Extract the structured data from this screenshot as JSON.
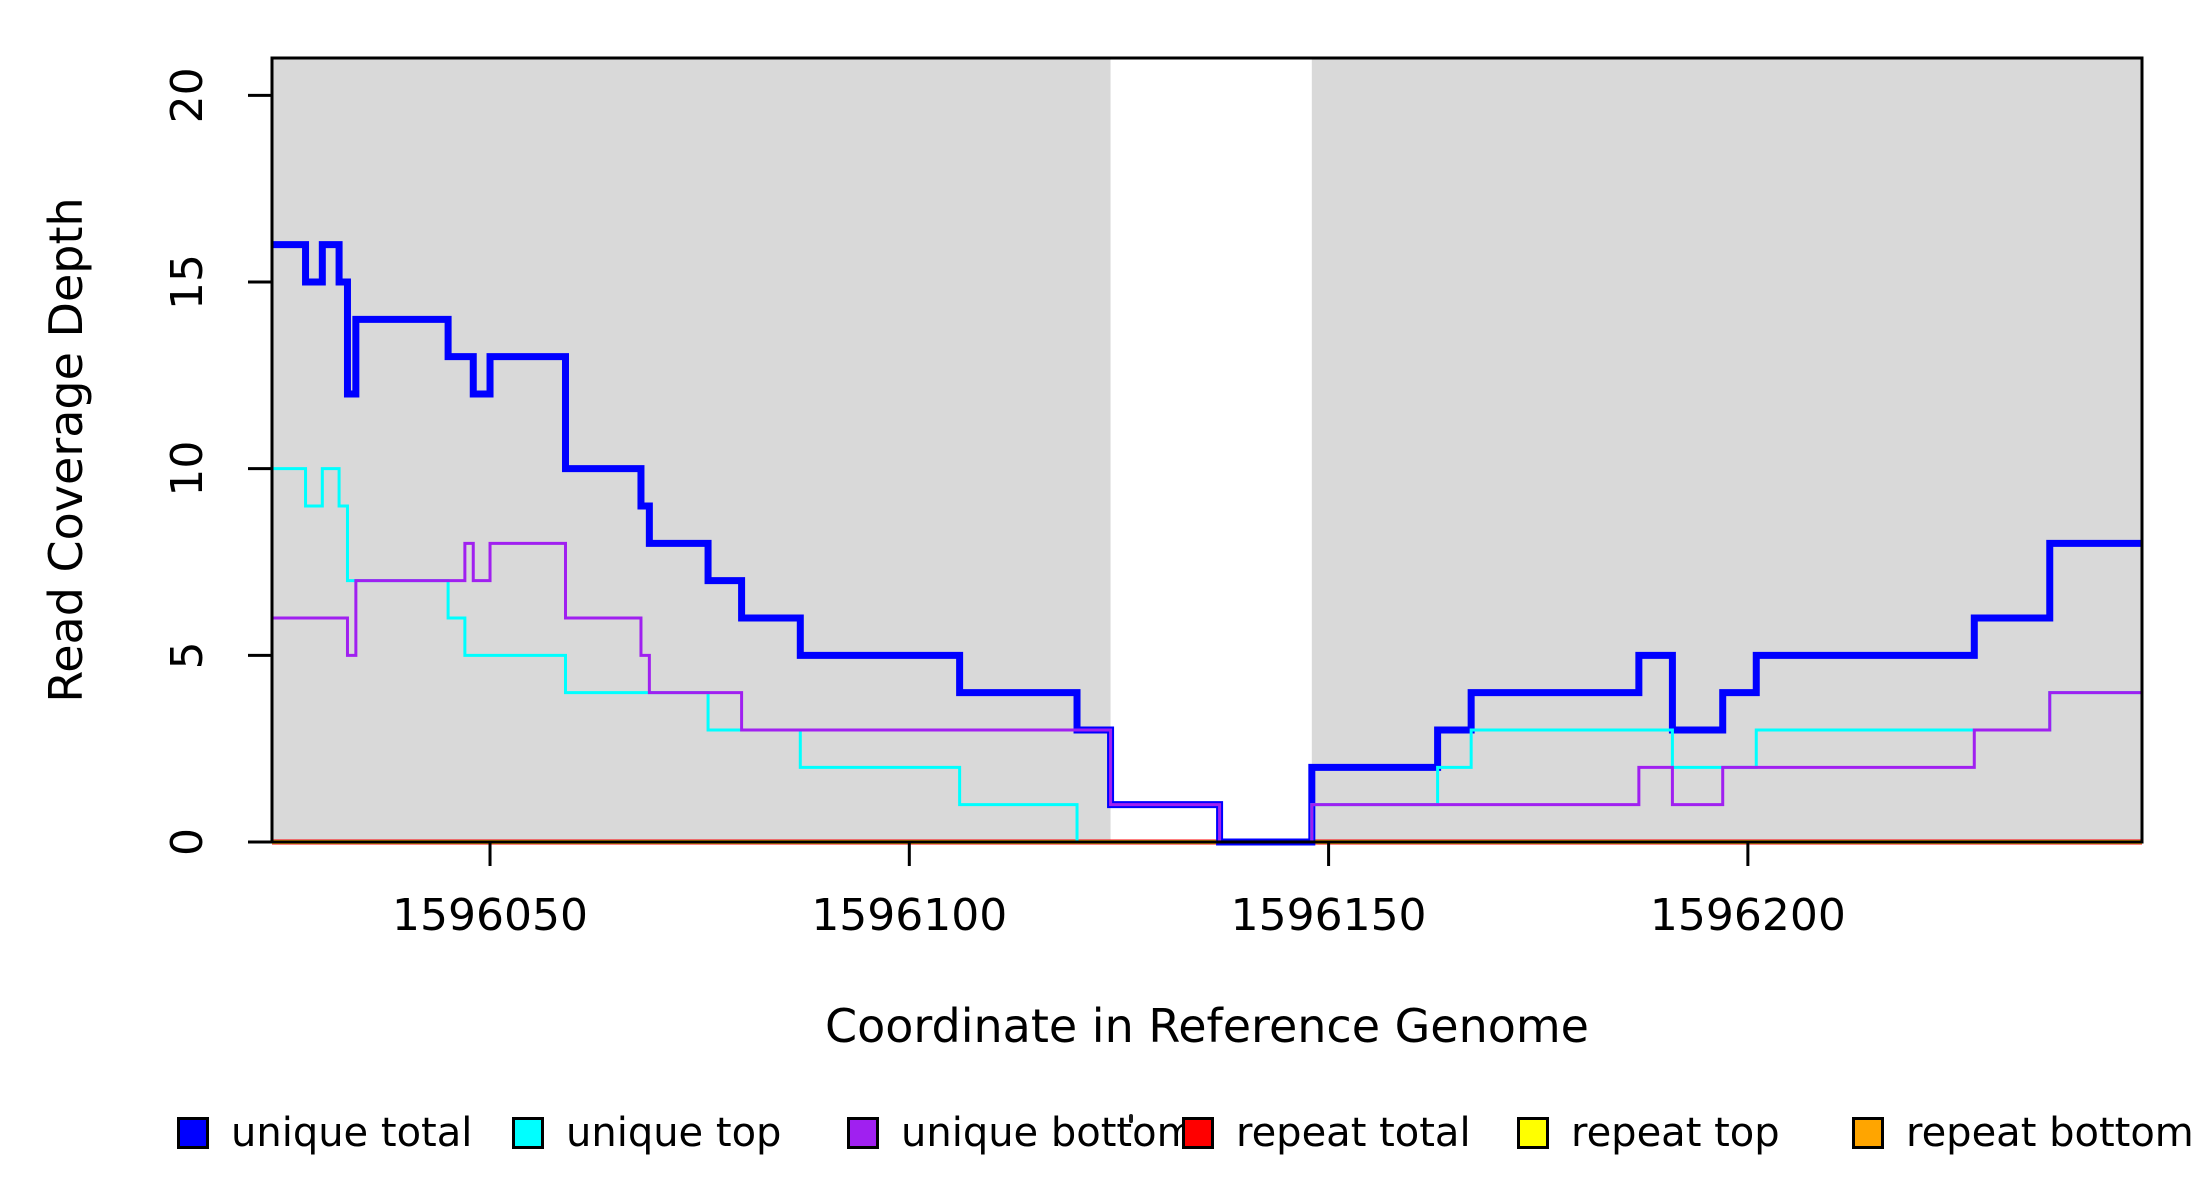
{
  "figure": {
    "background": "#FFFFFF",
    "plot_background_shaded": "#D9D9D9",
    "axis_color": "#000000"
  },
  "chart_data": {
    "type": "line",
    "subtype": "step-post",
    "title": "",
    "xlabel": "Coordinate in Reference Genome",
    "ylabel": "Read Coverage Depth",
    "xlim": [
      1596024,
      1596247
    ],
    "ylim": [
      0,
      21
    ],
    "x_ticks": [
      1596050,
      1596100,
      1596150,
      1596200
    ],
    "y_ticks": [
      0,
      5,
      10,
      15,
      20
    ],
    "grid": false,
    "shaded_regions": [
      {
        "x0": 1596024,
        "x1": 1596124,
        "color": "#D9D9D9"
      },
      {
        "x0": 1596148,
        "x1": 1596247,
        "color": "#D9D9D9"
      }
    ],
    "series": [
      {
        "name": "repeat total",
        "color": "#FF0000",
        "width": 5,
        "points": [
          [
            1596024,
            0
          ]
        ]
      },
      {
        "name": "repeat top",
        "color": "#FFFF00",
        "width": 4,
        "points": [
          [
            1596024,
            0
          ]
        ]
      },
      {
        "name": "repeat bottom",
        "color": "#FFA500",
        "width": 4,
        "points": [
          [
            1596024,
            0
          ]
        ]
      },
      {
        "name": "unique total",
        "color": "#0000FF",
        "width": 7,
        "points": [
          [
            1596024,
            16
          ],
          [
            1596028,
            15
          ],
          [
            1596030,
            16
          ],
          [
            1596032,
            15
          ],
          [
            1596033,
            12
          ],
          [
            1596034,
            14
          ],
          [
            1596045,
            13
          ],
          [
            1596048,
            12
          ],
          [
            1596050,
            13
          ],
          [
            1596059,
            10
          ],
          [
            1596068,
            9
          ],
          [
            1596069,
            8
          ],
          [
            1596076,
            7
          ],
          [
            1596080,
            6
          ],
          [
            1596087,
            5
          ],
          [
            1596106,
            4
          ],
          [
            1596120,
            3
          ],
          [
            1596124,
            1
          ],
          [
            1596137,
            0
          ],
          [
            1596148,
            2
          ],
          [
            1596163,
            3
          ],
          [
            1596167,
            4
          ],
          [
            1596187,
            5
          ],
          [
            1596191,
            3
          ],
          [
            1596197,
            4
          ],
          [
            1596201,
            5
          ],
          [
            1596227,
            6
          ],
          [
            1596236,
            8
          ]
        ]
      },
      {
        "name": "unique top",
        "color": "#00FFFF",
        "width": 3,
        "points": [
          [
            1596024,
            10
          ],
          [
            1596028,
            9
          ],
          [
            1596030,
            10
          ],
          [
            1596032,
            9
          ],
          [
            1596033,
            7
          ],
          [
            1596045,
            6
          ],
          [
            1596047,
            5
          ],
          [
            1596059,
            4
          ],
          [
            1596076,
            3
          ],
          [
            1596087,
            2
          ],
          [
            1596106,
            1
          ],
          [
            1596120,
            0
          ],
          [
            1596148,
            1
          ],
          [
            1596163,
            2
          ],
          [
            1596167,
            3
          ],
          [
            1596191,
            2
          ],
          [
            1596201,
            3
          ],
          [
            1596236,
            4
          ]
        ]
      },
      {
        "name": "unique bottom",
        "color": "#A020F0",
        "width": 3,
        "points": [
          [
            1596024,
            6
          ],
          [
            1596033,
            5
          ],
          [
            1596034,
            7
          ],
          [
            1596047,
            8
          ],
          [
            1596048,
            7
          ],
          [
            1596050,
            8
          ],
          [
            1596059,
            6
          ],
          [
            1596068,
            5
          ],
          [
            1596069,
            4
          ],
          [
            1596080,
            3
          ],
          [
            1596124,
            1
          ],
          [
            1596137,
            0
          ],
          [
            1596148,
            1
          ],
          [
            1596187,
            2
          ],
          [
            1596191,
            1
          ],
          [
            1596197,
            2
          ],
          [
            1596227,
            3
          ],
          [
            1596236,
            4
          ]
        ]
      }
    ],
    "legend": {
      "position": "bottom",
      "items": [
        {
          "label": "unique total",
          "color": "#0000FF"
        },
        {
          "label": "unique top",
          "color": "#00FFFF"
        },
        {
          "label": "unique bottom",
          "color": "#A020F0"
        },
        {
          "label": "repeat total",
          "color": "#FF0000"
        },
        {
          "label": "repeat top",
          "color": "#FFFF00"
        },
        {
          "label": "repeat bottom",
          "color": "#FFA500"
        }
      ]
    }
  }
}
